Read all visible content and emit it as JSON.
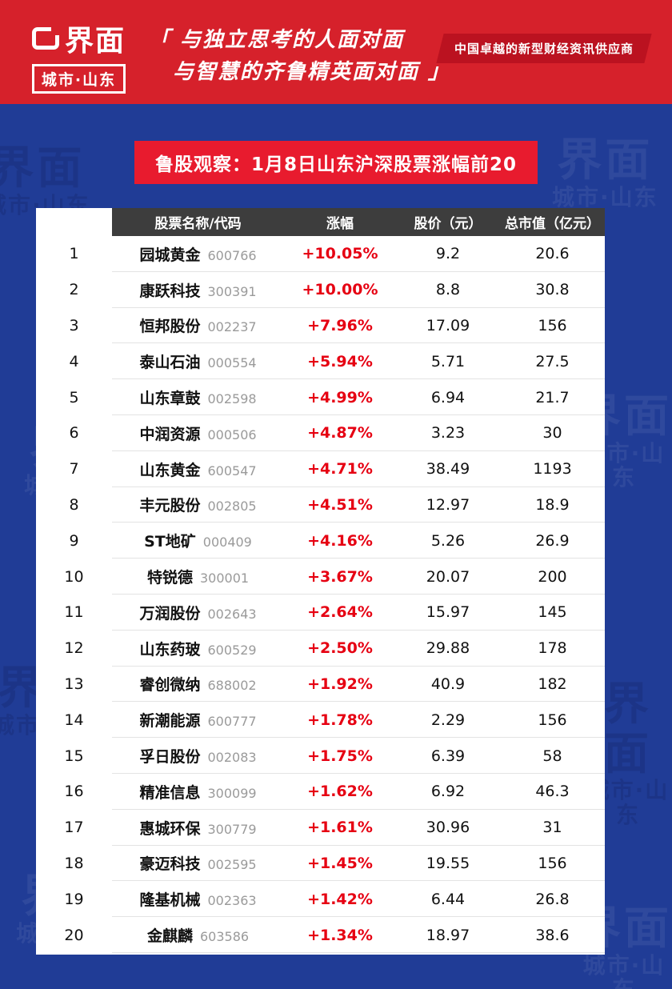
{
  "header": {
    "logo_brand": "界面",
    "logo_sub": "城市·山东",
    "quote_line1": "「 与独立思考的人面对面",
    "quote_line2": "与智慧的齐鲁精英面对面 」",
    "tagline": "中国卓越的新型财经资讯供应商"
  },
  "watermark": {
    "line1": "界面",
    "line2": "城市·山东"
  },
  "title": "鲁股观察：1月8日山东沪深股票涨幅前20",
  "colors": {
    "header_red": "#d6212b",
    "ribbon_red": "#bb1220",
    "banner_red": "#e81b2e",
    "body_blue": "#203c96",
    "table_header_bg": "#3d3d3d",
    "change_red": "#e60012"
  },
  "table": {
    "headers": [
      "股票名称/代码",
      "涨幅",
      "股价（元）",
      "总市值（亿元）"
    ],
    "rows": [
      {
        "rank": 1,
        "name": "园城黄金",
        "code": "600766",
        "change": "+10.05%",
        "price": "9.2",
        "cap": "20.6"
      },
      {
        "rank": 2,
        "name": "康跃科技",
        "code": "300391",
        "change": "+10.00%",
        "price": "8.8",
        "cap": "30.8"
      },
      {
        "rank": 3,
        "name": "恒邦股份",
        "code": "002237",
        "change": "+7.96%",
        "price": "17.09",
        "cap": "156"
      },
      {
        "rank": 4,
        "name": "泰山石油",
        "code": "000554",
        "change": "+5.94%",
        "price": "5.71",
        "cap": "27.5"
      },
      {
        "rank": 5,
        "name": "山东章鼓",
        "code": "002598",
        "change": "+4.99%",
        "price": "6.94",
        "cap": "21.7"
      },
      {
        "rank": 6,
        "name": "中润资源",
        "code": "000506",
        "change": "+4.87%",
        "price": "3.23",
        "cap": "30"
      },
      {
        "rank": 7,
        "name": "山东黄金",
        "code": "600547",
        "change": "+4.71%",
        "price": "38.49",
        "cap": "1193"
      },
      {
        "rank": 8,
        "name": "丰元股份",
        "code": "002805",
        "change": "+4.51%",
        "price": "12.97",
        "cap": "18.9"
      },
      {
        "rank": 9,
        "name": "ST地矿",
        "code": "000409",
        "change": "+4.16%",
        "price": "5.26",
        "cap": "26.9"
      },
      {
        "rank": 10,
        "name": "特锐德",
        "code": "300001",
        "change": "+3.67%",
        "price": "20.07",
        "cap": "200"
      },
      {
        "rank": 11,
        "name": "万润股份",
        "code": "002643",
        "change": "+2.64%",
        "price": "15.97",
        "cap": "145"
      },
      {
        "rank": 12,
        "name": "山东药玻",
        "code": "600529",
        "change": "+2.50%",
        "price": "29.88",
        "cap": "178"
      },
      {
        "rank": 13,
        "name": "睿创微纳",
        "code": "688002",
        "change": "+1.92%",
        "price": "40.9",
        "cap": "182"
      },
      {
        "rank": 14,
        "name": "新潮能源",
        "code": "600777",
        "change": "+1.78%",
        "price": "2.29",
        "cap": "156"
      },
      {
        "rank": 15,
        "name": "孚日股份",
        "code": "002083",
        "change": "+1.75%",
        "price": "6.39",
        "cap": "58"
      },
      {
        "rank": 16,
        "name": "精准信息",
        "code": "300099",
        "change": "+1.62%",
        "price": "6.92",
        "cap": "46.3"
      },
      {
        "rank": 17,
        "name": "惠城环保",
        "code": "300779",
        "change": "+1.61%",
        "price": "30.96",
        "cap": "31"
      },
      {
        "rank": 18,
        "name": "豪迈科技",
        "code": "002595",
        "change": "+1.45%",
        "price": "19.55",
        "cap": "156"
      },
      {
        "rank": 19,
        "name": "隆基机械",
        "code": "002363",
        "change": "+1.42%",
        "price": "6.44",
        "cap": "26.8"
      },
      {
        "rank": 20,
        "name": "金麒麟",
        "code": "603586",
        "change": "+1.34%",
        "price": "18.97",
        "cap": "38.6"
      }
    ]
  }
}
